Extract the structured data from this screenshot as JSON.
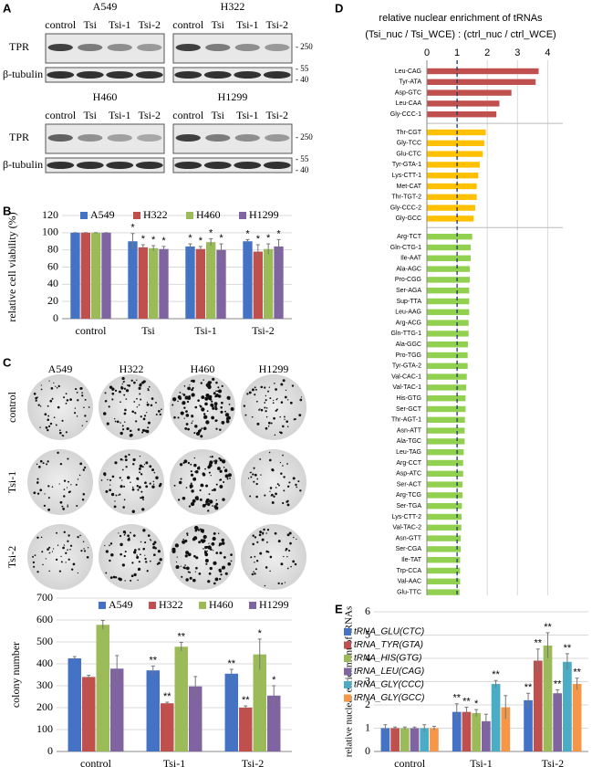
{
  "panels": [
    "A",
    "B",
    "C",
    "D",
    "E"
  ],
  "blots": {
    "cell_lines": [
      "A549",
      "H322",
      "H460",
      "H1299"
    ],
    "lanes": [
      "control",
      "Tsi",
      "Tsi-1",
      "Tsi-2"
    ],
    "proteins": [
      "TPR",
      "β-tubulin"
    ],
    "markers": [
      "- 250",
      "- 55",
      "- 40"
    ]
  },
  "colonies": {
    "cell_lines": [
      "A549",
      "H322",
      "H460",
      "H1299"
    ],
    "conditions": [
      "control",
      "Tsi-1",
      "Tsi-2"
    ]
  },
  "chart_data": [
    {
      "type": "bar",
      "ylabel": "relative cell viability (%)",
      "categories": [
        "control",
        "Tsi",
        "Tsi-1",
        "Tsi-2"
      ],
      "series": [
        {
          "name": "A549",
          "color": "#4472c4",
          "values": [
            100,
            90,
            84,
            90
          ],
          "errors": [
            0,
            9,
            3,
            2
          ],
          "annotations": [
            null,
            "*",
            "*",
            "*"
          ]
        },
        {
          "name": "H322",
          "color": "#c0504d",
          "values": [
            100,
            83,
            81,
            78
          ],
          "errors": [
            0,
            3,
            3,
            8
          ],
          "annotations": [
            null,
            "*",
            "*",
            "*"
          ]
        },
        {
          "name": "H460",
          "color": "#9bbb59",
          "values": [
            100,
            82,
            89,
            81
          ],
          "errors": [
            0,
            3,
            4,
            6
          ],
          "annotations": [
            null,
            "*",
            "*",
            "*"
          ]
        },
        {
          "name": "H1299",
          "color": "#8064a2",
          "values": [
            100,
            81,
            80,
            84
          ],
          "errors": [
            0,
            3,
            7,
            8
          ],
          "annotations": [
            null,
            "*",
            "*",
            "*"
          ]
        }
      ],
      "ylim": [
        0,
        120
      ],
      "yticks": [
        0,
        20,
        40,
        60,
        80,
        100,
        120
      ],
      "grid": true,
      "legend": "top"
    },
    {
      "type": "bar",
      "ylabel": "colony number",
      "categories": [
        "control",
        "Tsi-1",
        "Tsi-2"
      ],
      "series": [
        {
          "name": "A549",
          "color": "#4472c4",
          "values": [
            425,
            370,
            355
          ],
          "errors": [
            8,
            20,
            20
          ],
          "annotations": [
            null,
            "**",
            "**"
          ]
        },
        {
          "name": "H322",
          "color": "#c0504d",
          "values": [
            340,
            220,
            200
          ],
          "errors": [
            8,
            5,
            8
          ],
          "annotations": [
            null,
            "**",
            "**"
          ]
        },
        {
          "name": "H460",
          "color": "#9bbb59",
          "values": [
            578,
            478,
            443
          ],
          "errors": [
            20,
            20,
            70
          ],
          "annotations": [
            null,
            "**",
            "*"
          ]
        },
        {
          "name": "H1299",
          "color": "#8064a2",
          "values": [
            378,
            297,
            255
          ],
          "errors": [
            60,
            45,
            45
          ],
          "annotations": [
            null,
            null,
            "*"
          ]
        }
      ],
      "ylim": [
        0,
        700
      ],
      "yticks": [
        0,
        100,
        200,
        300,
        400,
        500,
        600,
        700
      ],
      "grid": true,
      "legend": "top"
    },
    {
      "type": "hbar",
      "title": "relative nuclear enrichment of tRNAs",
      "subtitle": "(Tsi_nuc / Tsi_WCE) : (ctrl_nuc / ctrl_WCE)",
      "groups": [
        {
          "color": "#c0504d",
          "categories": [
            "Leu-CAG",
            "Tyr-ATA",
            "Asp-GTC",
            "Leu-CAA",
            "Gly-CCC-1"
          ],
          "values": [
            3.7,
            3.6,
            2.8,
            2.4,
            2.3
          ]
        },
        {
          "color": "#ffc000",
          "categories": [
            "Thr-CGT",
            "Gly-TCC",
            "Glu-CTC",
            "Tyr-GTA-1",
            "Lys-CTT-1",
            "Met-CAT",
            "Thr-TGT-2",
            "Gly-CCC-2",
            "Gly-GCC"
          ],
          "values": [
            1.95,
            1.9,
            1.85,
            1.75,
            1.7,
            1.65,
            1.65,
            1.6,
            1.55
          ]
        },
        {
          "color": "#92d050",
          "categories": [
            "Arg-TCT",
            "Gln-CTG-1",
            "Ile-AAT",
            "Ala-AGC",
            "Pro-CGG",
            "Ser-AGA",
            "Sup-TTA",
            "Leu-AAG",
            "Arg-ACG",
            "Gln-TTG-1",
            "Ala-GGC",
            "Pro-TGG",
            "Tyr-GTA-2",
            "Val-CAC-1",
            "Val-TAC-1",
            "His-GTG",
            "Ser-GCT",
            "Thr-AGT-1",
            "Asn-ATT",
            "Ala-TGC",
            "Leu-TAG",
            "Arg-CCT",
            "Asp-ATC",
            "Ser-ACT",
            "Arg-TCG",
            "Ser-TGA",
            "Lys-CTT-2",
            "Val-TAC-2",
            "Asn-GTT",
            "Ser-CGA",
            "Ile-TAT",
            "Trp-CCA",
            "Val-AAC",
            "Glu-TTC"
          ],
          "values": [
            1.5,
            1.45,
            1.45,
            1.42,
            1.42,
            1.4,
            1.4,
            1.4,
            1.38,
            1.38,
            1.36,
            1.35,
            1.35,
            1.32,
            1.3,
            1.28,
            1.28,
            1.26,
            1.25,
            1.25,
            1.22,
            1.2,
            1.2,
            1.18,
            1.18,
            1.16,
            1.15,
            1.14,
            1.12,
            1.12,
            1.1,
            1.1,
            1.1,
            1.08
          ]
        }
      ],
      "xlim": [
        0,
        4.5
      ],
      "xticks": [
        0,
        1,
        2,
        3,
        4
      ],
      "refline": 1,
      "grid": true
    },
    {
      "type": "bar",
      "ylabel": "relative nuclear enrichment of tRNAs",
      "categories": [
        "control",
        "Tsi-1",
        "Tsi-2"
      ],
      "series": [
        {
          "name": "tRNA_GLU(CTC)",
          "color": "#4472c4",
          "values": [
            1,
            1.7,
            2.2
          ],
          "errors": [
            0.15,
            0.35,
            0.3
          ],
          "annotations": [
            null,
            "**",
            "**"
          ]
        },
        {
          "name": "tRNA_TYR(GTA)",
          "color": "#c0504d",
          "values": [
            1,
            1.7,
            3.9
          ],
          "errors": [
            0.05,
            0.2,
            0.5
          ],
          "annotations": [
            null,
            "**",
            "**"
          ]
        },
        {
          "name": "tRNA_HIS(GTG)",
          "color": "#9bbb59",
          "values": [
            1,
            1.65,
            4.55
          ],
          "errors": [
            0.05,
            0.15,
            0.55
          ],
          "annotations": [
            null,
            "*",
            "**"
          ]
        },
        {
          "name": "tRNA_LEU(CAG)",
          "color": "#8064a2",
          "values": [
            1,
            1.3,
            2.5
          ],
          "errors": [
            0.05,
            0.3,
            0.15
          ],
          "annotations": [
            null,
            null,
            "**"
          ]
        },
        {
          "name": "tRNA_GLY(CCC)",
          "color": "#4bacc6",
          "values": [
            1,
            2.9,
            3.85
          ],
          "errors": [
            0.15,
            0.15,
            0.35
          ],
          "annotations": [
            null,
            "**",
            "**"
          ]
        },
        {
          "name": "tRNA_GLY(GCC)",
          "color": "#f79646",
          "values": [
            1,
            1.9,
            2.9
          ],
          "errors": [
            0.08,
            0.5,
            0.25
          ],
          "annotations": [
            null,
            null,
            "**"
          ]
        }
      ],
      "ylim": [
        0,
        6
      ],
      "yticks": [
        0,
        1,
        2,
        3,
        4,
        5,
        6
      ],
      "grid": true,
      "legend": "upper left"
    }
  ]
}
